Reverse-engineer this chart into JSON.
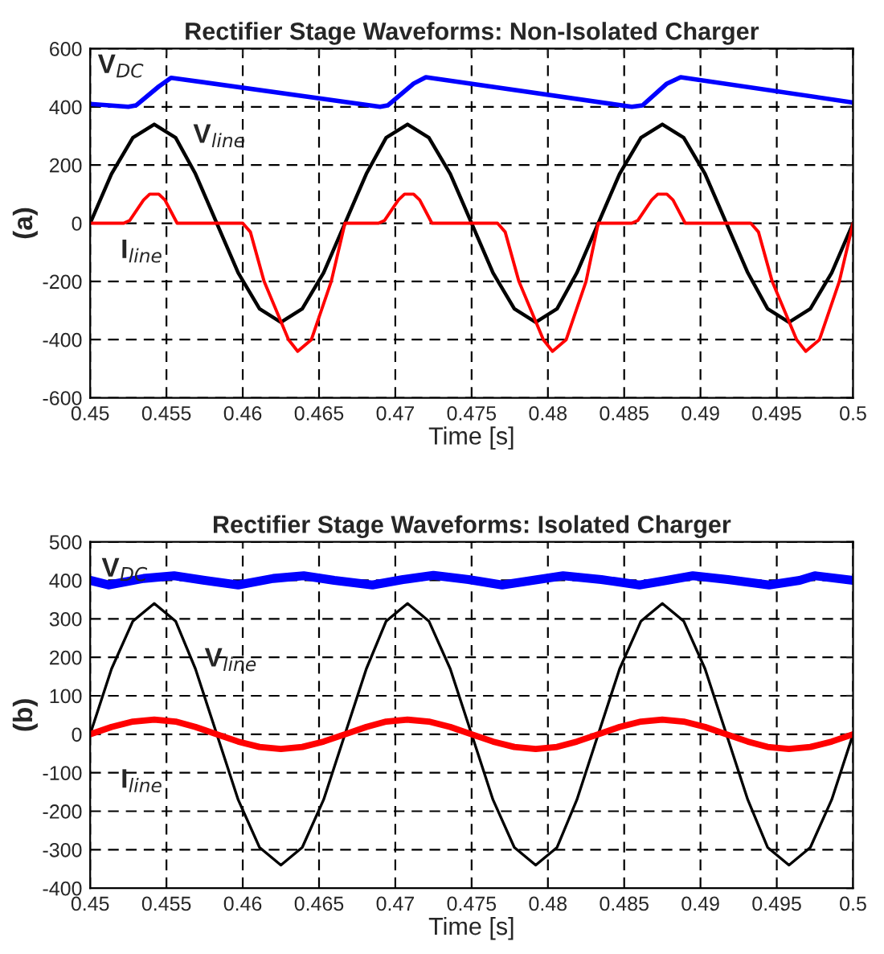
{
  "chart_data": [
    {
      "type": "line",
      "title": "Rectifier Stage Waveforms: Non-Isolated Charger",
      "xlabel": "Time [s]",
      "ylabel": "(a)",
      "xlim": [
        0.45,
        0.5
      ],
      "xticks": [
        0.45,
        0.455,
        0.46,
        0.465,
        0.47,
        0.475,
        0.48,
        0.485,
        0.49,
        0.495,
        0.5
      ],
      "ylim": [
        -600,
        600
      ],
      "yticks": [
        -600,
        -400,
        -200,
        0,
        200,
        400,
        600
      ],
      "grid": true,
      "line_style": "solid",
      "series": [
        {
          "name": "V$_{DC}$",
          "color": "#0000ff",
          "x": [
            0.45,
            0.4525,
            0.453,
            0.4545,
            0.4553,
            0.469,
            0.4695,
            0.4712,
            0.472,
            0.4855,
            0.4862,
            0.4878,
            0.4887,
            0.5
          ],
          "values": [
            410,
            400,
            405,
            470,
            500,
            400,
            405,
            480,
            502,
            400,
            405,
            480,
            502,
            415
          ]
        },
        {
          "name": "V$_{line}$",
          "color": "#000000",
          "x": [
            0.45,
            0.4514,
            0.4528,
            0.4542,
            0.4556,
            0.4569,
            0.4583,
            0.4597,
            0.4611,
            0.4625,
            0.4639,
            0.4653,
            0.4667,
            0.4681,
            0.4694,
            0.4708,
            0.4722,
            0.4736,
            0.475,
            0.4764,
            0.4778,
            0.4792,
            0.4806,
            0.4819,
            0.4833,
            0.4847,
            0.4861,
            0.4875,
            0.4889,
            0.4903,
            0.4917,
            0.4931,
            0.4944,
            0.4958,
            0.4972,
            0.4986,
            0.5
          ],
          "values": [
            0,
            170,
            294,
            340,
            294,
            170,
            0,
            -170,
            -294,
            -340,
            -294,
            -170,
            0,
            170,
            294,
            340,
            294,
            170,
            0,
            -170,
            -294,
            -340,
            -294,
            -170,
            0,
            170,
            294,
            340,
            294,
            170,
            0,
            -170,
            -294,
            -340,
            -294,
            -170,
            0
          ]
        },
        {
          "name": "I$_{line}$",
          "color": "#ff0000",
          "x": [
            0.45,
            0.4522,
            0.4526,
            0.4535,
            0.4539,
            0.4545,
            0.4549,
            0.4557,
            0.46,
            0.4605,
            0.4614,
            0.463,
            0.4636,
            0.4645,
            0.4658,
            0.4667,
            0.4689,
            0.4693,
            0.4702,
            0.4706,
            0.4712,
            0.4716,
            0.4724,
            0.4767,
            0.4772,
            0.4781,
            0.4797,
            0.4803,
            0.4812,
            0.4825,
            0.4833,
            0.4855,
            0.4859,
            0.4868,
            0.4872,
            0.4878,
            0.4882,
            0.489,
            0.4933,
            0.4938,
            0.4947,
            0.4963,
            0.4969,
            0.4978,
            0.4991,
            0.5
          ],
          "values": [
            0,
            0,
            10,
            80,
            100,
            100,
            80,
            0,
            0,
            -30,
            -200,
            -400,
            -440,
            -400,
            -200,
            0,
            0,
            10,
            80,
            100,
            100,
            80,
            0,
            0,
            -30,
            -200,
            -400,
            -440,
            -400,
            -200,
            0,
            0,
            10,
            80,
            100,
            100,
            80,
            0,
            0,
            -30,
            -200,
            -400,
            -440,
            -400,
            -200,
            0
          ]
        }
      ]
    },
    {
      "type": "line",
      "title": "Rectifier Stage Waveforms: Isolated Charger",
      "xlabel": "Time [s]",
      "ylabel": "(b)",
      "xlim": [
        0.45,
        0.5
      ],
      "xticks": [
        0.45,
        0.455,
        0.46,
        0.465,
        0.47,
        0.475,
        0.48,
        0.485,
        0.49,
        0.495,
        0.5
      ],
      "ylim": [
        -400,
        500
      ],
      "yticks": [
        -400,
        -300,
        -200,
        -100,
        0,
        100,
        200,
        300,
        400,
        500
      ],
      "grid": true,
      "line_style": "solid",
      "series": [
        {
          "name": "V$_{DC}$",
          "color": "#0000ff",
          "x": [
            0.45,
            0.4512,
            0.4535,
            0.4555,
            0.4575,
            0.4597,
            0.462,
            0.464,
            0.466,
            0.4685,
            0.4705,
            0.4725,
            0.4748,
            0.477,
            0.479,
            0.481,
            0.4835,
            0.486,
            0.4878,
            0.4895,
            0.4918,
            0.4945,
            0.4965,
            0.4975,
            0.5
          ],
          "values": [
            400,
            388,
            405,
            412,
            400,
            388,
            405,
            412,
            400,
            388,
            402,
            413,
            402,
            388,
            400,
            412,
            402,
            388,
            400,
            412,
            402,
            388,
            400,
            412,
            400
          ]
        },
        {
          "name": "V$_{line}$",
          "color": "#000000",
          "x": [
            0.45,
            0.4514,
            0.4528,
            0.4542,
            0.4556,
            0.4569,
            0.4583,
            0.4597,
            0.4611,
            0.4625,
            0.4639,
            0.4653,
            0.4667,
            0.4681,
            0.4694,
            0.4708,
            0.4722,
            0.4736,
            0.475,
            0.4764,
            0.4778,
            0.4792,
            0.4806,
            0.4819,
            0.4833,
            0.4847,
            0.4861,
            0.4875,
            0.4889,
            0.4903,
            0.4917,
            0.4931,
            0.4944,
            0.4958,
            0.4972,
            0.4986,
            0.5
          ],
          "values": [
            0,
            170,
            294,
            340,
            294,
            170,
            0,
            -170,
            -294,
            -340,
            -294,
            -170,
            0,
            170,
            294,
            340,
            294,
            170,
            0,
            -170,
            -294,
            -340,
            -294,
            -170,
            0,
            170,
            294,
            340,
            294,
            170,
            0,
            -170,
            -294,
            -340,
            -294,
            -170,
            0
          ]
        },
        {
          "name": "I$_{line}$",
          "color": "#ff0000",
          "x": [
            0.45,
            0.4514,
            0.4528,
            0.4542,
            0.4556,
            0.4569,
            0.4583,
            0.4597,
            0.4611,
            0.4625,
            0.4639,
            0.4653,
            0.4667,
            0.4681,
            0.4694,
            0.4708,
            0.4722,
            0.4736,
            0.475,
            0.4764,
            0.4778,
            0.4792,
            0.4806,
            0.4819,
            0.4833,
            0.4847,
            0.4861,
            0.4875,
            0.4889,
            0.4903,
            0.4917,
            0.4931,
            0.4944,
            0.4958,
            0.4972,
            0.4986,
            0.5
          ],
          "values": [
            0,
            19,
            33,
            38,
            33,
            19,
            0,
            -19,
            -33,
            -38,
            -33,
            -19,
            0,
            19,
            33,
            38,
            33,
            19,
            0,
            -19,
            -33,
            -38,
            -33,
            -19,
            0,
            19,
            33,
            38,
            33,
            19,
            0,
            -19,
            -33,
            -38,
            -33,
            -19,
            0
          ]
        }
      ]
    }
  ]
}
